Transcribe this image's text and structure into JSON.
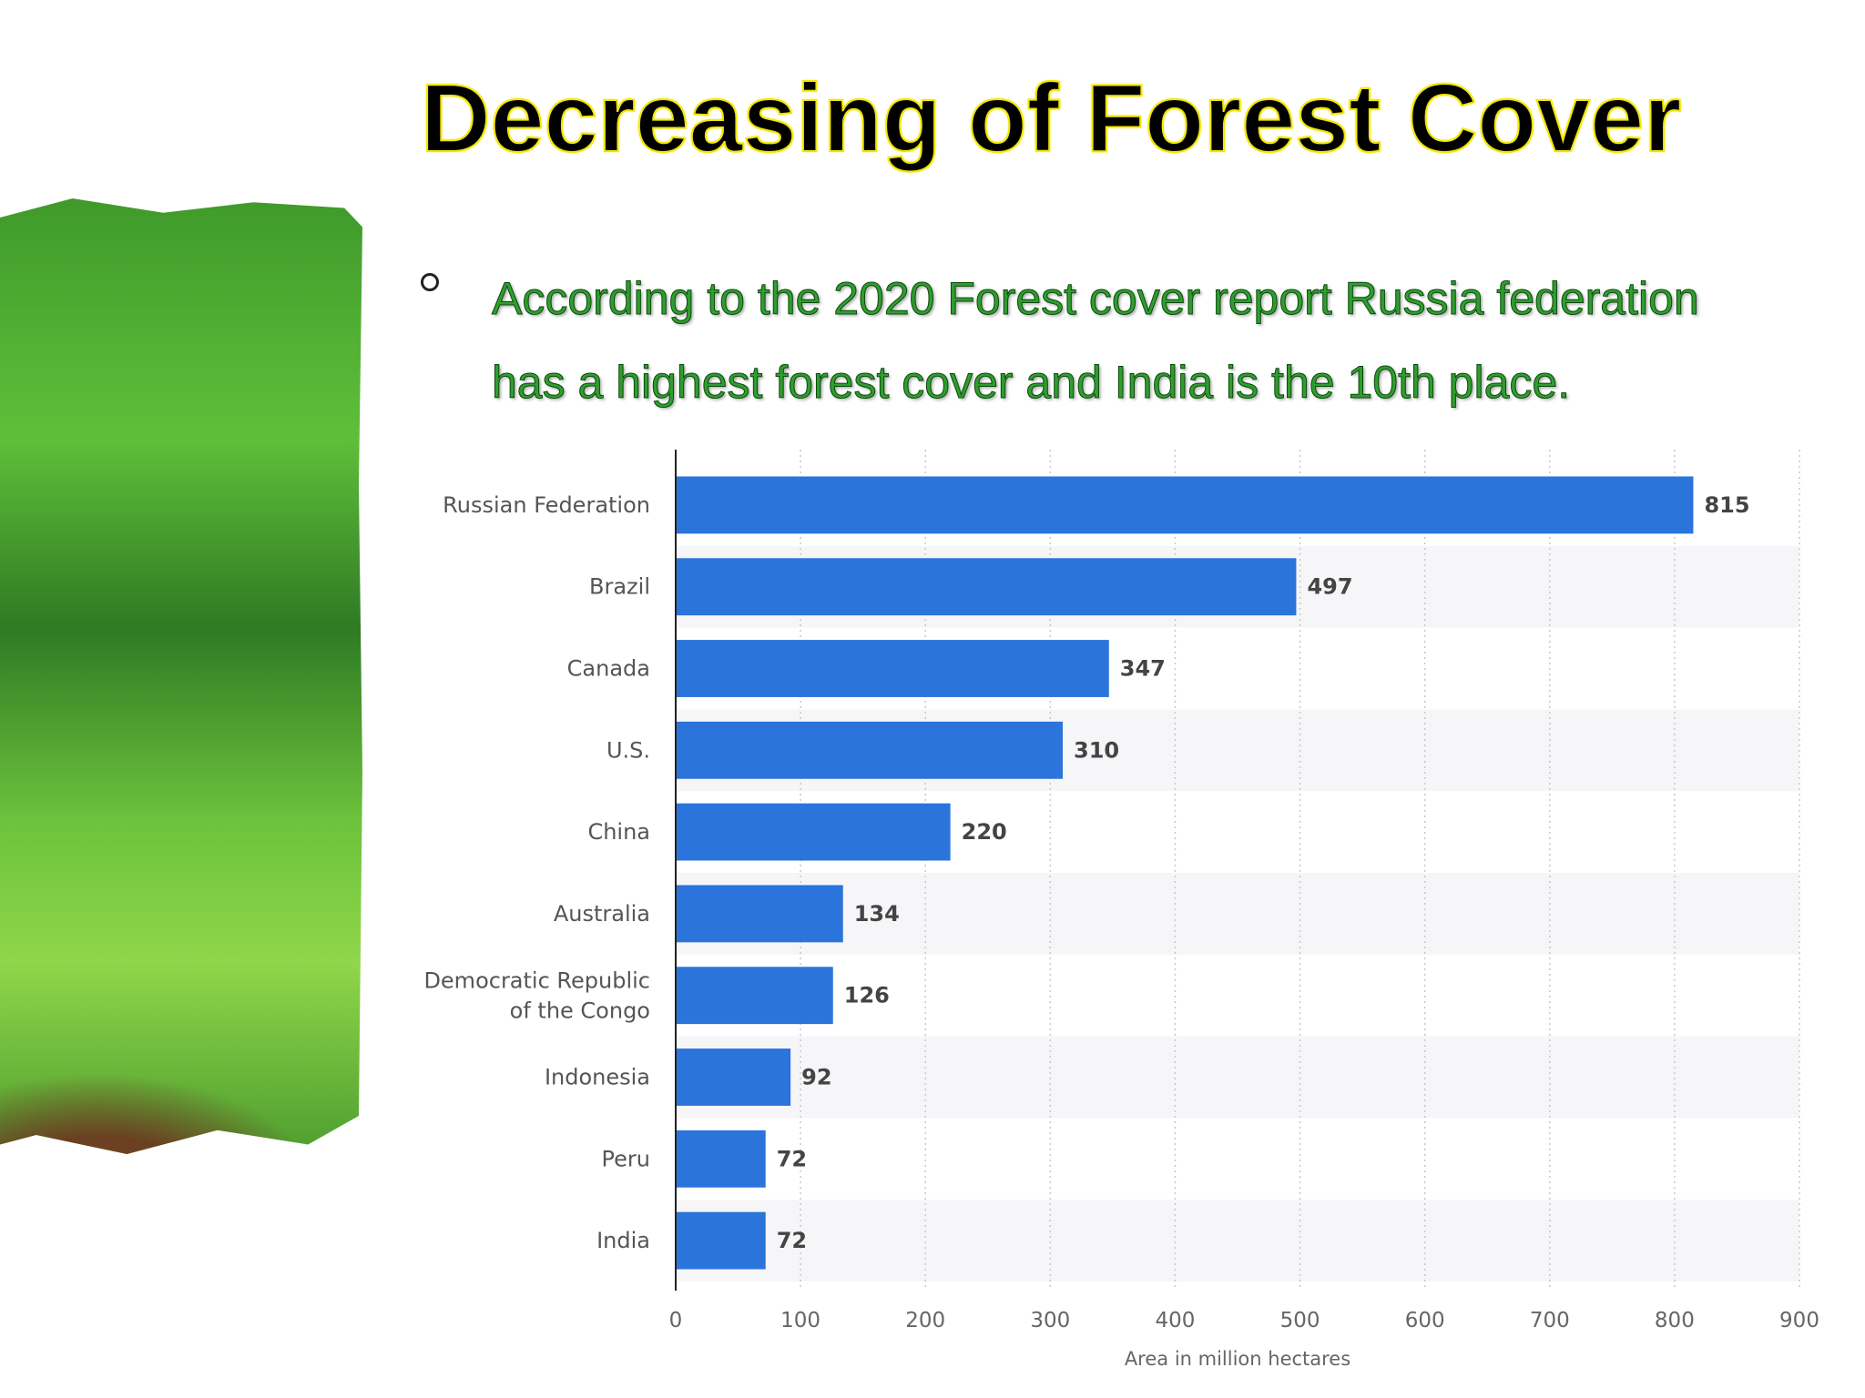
{
  "slide": {
    "title": "Decreasing of Forest Cover",
    "bullet": "According to the 2020 Forest cover report  Russia federation has a highest forest cover and India is the 10th place."
  },
  "chart_data": {
    "type": "bar",
    "orientation": "horizontal",
    "categories": [
      "Russian Federation",
      "Brazil",
      "Canada",
      "U.S.",
      "China",
      "Australia",
      "Democratic Republic of the Congo",
      "Indonesia",
      "Peru",
      "India"
    ],
    "values": [
      815,
      497,
      347,
      310,
      220,
      134,
      126,
      92,
      72,
      72
    ],
    "xlabel": "Area in million hectares",
    "xlim": [
      0,
      900
    ],
    "ticks": [
      0,
      100,
      200,
      300,
      400,
      500,
      600,
      700,
      800,
      900
    ],
    "bar_color": "#2b74dc",
    "grid": true
  }
}
